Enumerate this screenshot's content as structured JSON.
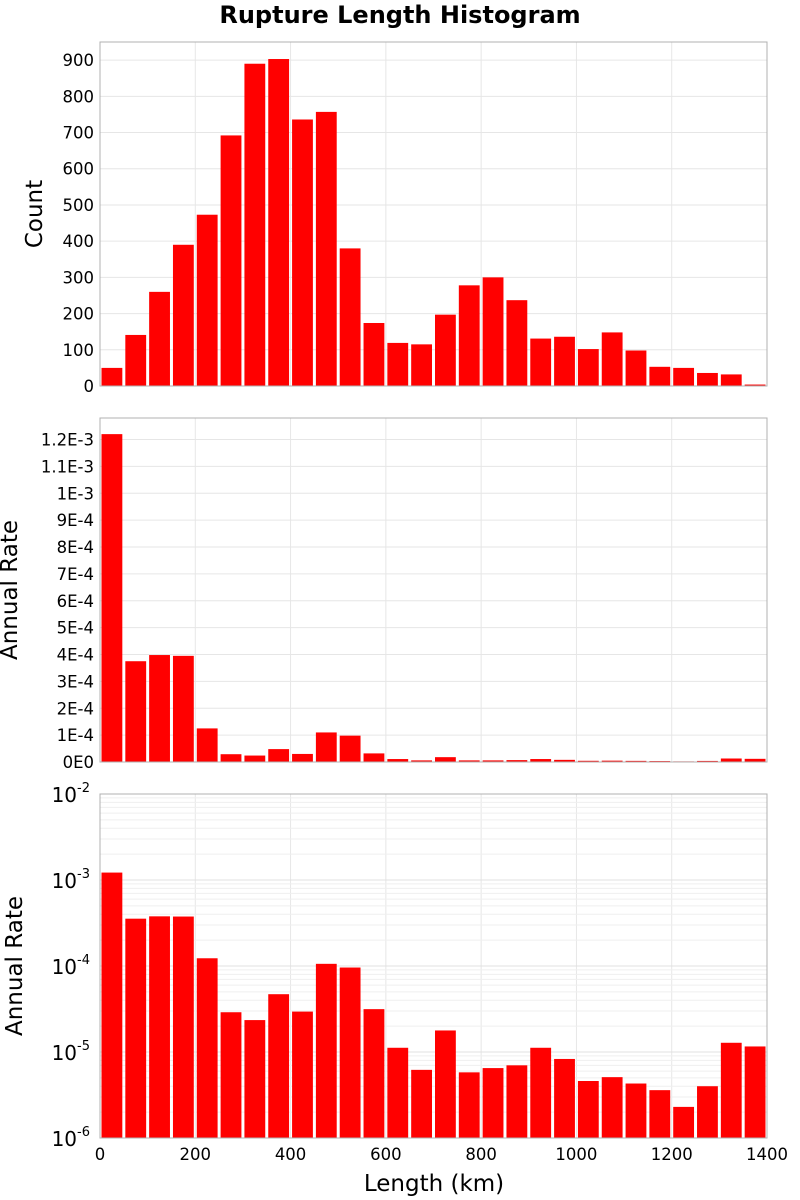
{
  "title": "Rupture Length Histogram",
  "xlabel": "Length (km)",
  "x_ticks": [
    "0",
    "200",
    "400",
    "600",
    "800",
    "1000",
    "1200",
    "1400"
  ],
  "bar_color": "#ff0000",
  "chart_data": [
    {
      "type": "bar",
      "title": "Rupture Length Histogram",
      "ylabel": "Count",
      "xlim": [
        0,
        1400
      ],
      "ylim": [
        0,
        950
      ],
      "bin_width": 50,
      "x": [
        25,
        75,
        125,
        175,
        225,
        275,
        325,
        375,
        425,
        475,
        525,
        575,
        625,
        675,
        725,
        775,
        825,
        875,
        925,
        975,
        1025,
        1075,
        1125,
        1175,
        1225,
        1275,
        1325,
        1375
      ],
      "values": [
        50,
        141,
        260,
        390,
        473,
        692,
        890,
        903,
        736,
        757,
        380,
        174,
        119,
        115,
        197,
        278,
        300,
        237,
        131,
        136,
        102,
        148,
        98,
        53,
        50,
        36,
        32,
        4
      ],
      "y_ticks": [
        "0",
        "100",
        "200",
        "300",
        "400",
        "500",
        "600",
        "700",
        "800",
        "900"
      ],
      "grid": true
    },
    {
      "type": "bar",
      "ylabel": "Annual Rate",
      "xlim": [
        0,
        1400
      ],
      "ylim": [
        0,
        0.00128
      ],
      "bin_width": 50,
      "x": [
        25,
        75,
        125,
        175,
        225,
        275,
        325,
        375,
        425,
        475,
        525,
        575,
        625,
        675,
        725,
        775,
        825,
        875,
        925,
        975,
        1025,
        1075,
        1125,
        1175,
        1225,
        1275,
        1325,
        1375
      ],
      "values": [
        0.00122,
        0.000375,
        0.000398,
        0.000395,
        0.000125,
        2.9e-05,
        2.4e-05,
        4.8e-05,
        3e-05,
        0.00011,
        9.8e-05,
        3.2e-05,
        1.1e-05,
        6e-06,
        1.8e-05,
        6e-06,
        6e-06,
        7e-06,
        1.1e-05,
        8e-06,
        4.5e-06,
        5e-06,
        4.2e-06,
        3.5e-06,
        2.3e-06,
        4e-06,
        1.3e-05,
        1.18e-05
      ],
      "y_ticks": [
        "0E0",
        "1E-4",
        "2E-4",
        "3E-4",
        "4E-4",
        "5E-4",
        "6E-4",
        "7E-4",
        "8E-4",
        "9E-4",
        "1E-3",
        "1.1E-3",
        "1.2E-3"
      ],
      "grid": true
    },
    {
      "type": "bar",
      "ylabel": "Annual Rate",
      "xlabel": "Length (km)",
      "xlim": [
        0,
        1400
      ],
      "ylim": [
        1e-06,
        0.01
      ],
      "yscale": "log",
      "bin_width": 50,
      "x": [
        25,
        75,
        125,
        175,
        225,
        275,
        325,
        375,
        425,
        475,
        525,
        575,
        625,
        675,
        725,
        775,
        825,
        875,
        925,
        975,
        1025,
        1075,
        1125,
        1175,
        1225,
        1275,
        1325,
        1375
      ],
      "values": [
        0.00122,
        0.000355,
        0.000378,
        0.000376,
        0.000123,
        2.9e-05,
        2.35e-05,
        4.7e-05,
        2.95e-05,
        0.000106,
        9.6e-05,
        3.15e-05,
        1.12e-05,
        6.2e-06,
        1.78e-05,
        5.8e-06,
        6.5e-06,
        7e-06,
        1.12e-05,
        8.3e-06,
        4.6e-06,
        5.1e-06,
        4.3e-06,
        3.6e-06,
        2.3e-06,
        4e-06,
        1.28e-05,
        1.16e-05
      ],
      "y_ticks": [
        {
          "base": "10",
          "exp": "-6"
        },
        {
          "base": "10",
          "exp": "-5"
        },
        {
          "base": "10",
          "exp": "-4"
        },
        {
          "base": "10",
          "exp": "-3"
        },
        {
          "base": "10",
          "exp": "-2"
        }
      ],
      "grid": true
    }
  ]
}
